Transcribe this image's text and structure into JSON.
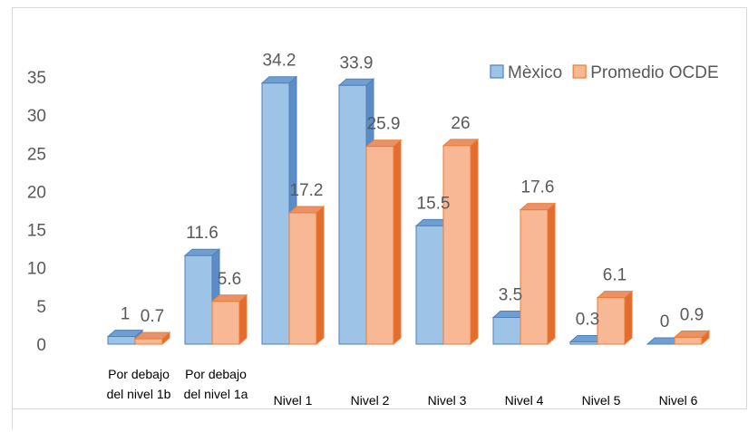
{
  "chart_data": {
    "type": "bar",
    "title": "",
    "xlabel": "",
    "ylabel": "",
    "ylim": [
      0,
      35
    ],
    "yticks": [
      0,
      5,
      10,
      15,
      20,
      25,
      30,
      35
    ],
    "grid": false,
    "legend_position": "top-right",
    "categories": [
      [
        "Por debajo",
        "del nivel 1b"
      ],
      [
        "Por debajo",
        "del nivel 1a"
      ],
      [
        "Nivel 1"
      ],
      [
        "Nivel 2"
      ],
      [
        "Nivel 3"
      ],
      [
        "Nivel 4"
      ],
      [
        "Nivel 5"
      ],
      [
        "Nivel 6"
      ]
    ],
    "series": [
      {
        "name": "Mèxico",
        "values": [
          1,
          11.6,
          34.2,
          33.9,
          15.5,
          3.5,
          0.3,
          0
        ],
        "colors": {
          "front": "#9dc3e6",
          "top": "#6f9fd1",
          "side": "#5b8cc5",
          "stroke": "#4f81bd"
        }
      },
      {
        "name": "Promedio OCDE",
        "values": [
          0.7,
          5.6,
          17.2,
          25.9,
          26,
          17.6,
          6.1,
          0.9
        ],
        "colors": {
          "front": "#f8b895",
          "top": "#e8926a",
          "side": "#e46c2e",
          "stroke": "#ed7d31"
        }
      }
    ]
  }
}
